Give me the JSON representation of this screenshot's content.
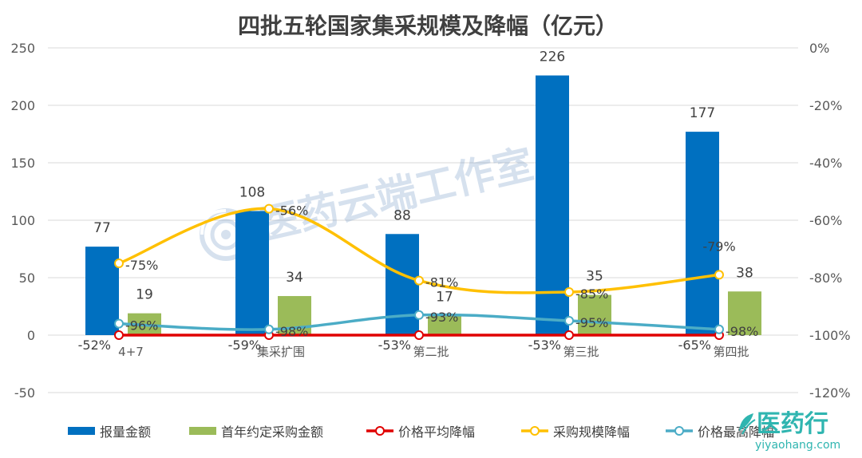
{
  "chart_data": {
    "type": "bar",
    "title": "四批五轮国家集采规模及降幅（亿元）",
    "categories": [
      "4+7",
      "集采扩围",
      "第二批",
      "第三批",
      "第四批"
    ],
    "y_left": {
      "min": -50,
      "max": 250,
      "ticks": [
        "250",
        "200",
        "150",
        "100",
        "50",
        "0",
        "-50"
      ],
      "tick_values": [
        250,
        200,
        150,
        100,
        50,
        0,
        -50
      ]
    },
    "y_right": {
      "min": -120,
      "max": 0,
      "ticks": [
        "0%",
        "-20%",
        "-40%",
        "-60%",
        "-80%",
        "-100%",
        "-120%"
      ],
      "tick_values": [
        0,
        -20,
        -40,
        -60,
        -80,
        -100,
        -120
      ]
    },
    "grid": true,
    "legend_position": "bottom",
    "series": [
      {
        "name": "报量金额",
        "kind": "bar",
        "axis": "left",
        "color": "#0070C0",
        "values": [
          77,
          108,
          88,
          226,
          177
        ],
        "labels": [
          "77",
          "108",
          "88",
          "226",
          "177"
        ]
      },
      {
        "name": "首年约定采购金额",
        "kind": "bar",
        "axis": "left",
        "color": "#9BBB59",
        "values": [
          19,
          34,
          17,
          35,
          38
        ],
        "labels": [
          "19",
          "34",
          "17",
          "35",
          "38"
        ]
      },
      {
        "name": "价格平均降幅",
        "kind": "line",
        "axis": "right",
        "color": "#E00000",
        "values": [
          -52,
          -59,
          -53,
          -53,
          -65
        ],
        "labels": [
          "-52%",
          "-59%",
          "-53%",
          "-53%",
          "-65%"
        ],
        "display": "baseline"
      },
      {
        "name": "采购规模降幅",
        "kind": "line",
        "axis": "right",
        "color": "#FFC000",
        "values": [
          -75,
          -56,
          -81,
          -85,
          -79
        ],
        "labels": [
          "-75%",
          "-56%",
          "-81%",
          "-85%",
          "-79%"
        ]
      },
      {
        "name": "价格最高降幅",
        "kind": "line",
        "axis": "right",
        "color": "#4BACC6",
        "values": [
          -96,
          -98,
          -93,
          -95,
          -98
        ],
        "labels": [
          "-96%",
          "-98%",
          "-93%",
          "-95%",
          "-98%"
        ]
      }
    ]
  },
  "watermark": {
    "text": "医药云端工作室",
    "icon": "swirl-logo-icon"
  },
  "brand": {
    "name": "医药行",
    "url": "yiyaohang.com",
    "icon": "leaf-logo-icon",
    "color": "#2FB5B0"
  }
}
